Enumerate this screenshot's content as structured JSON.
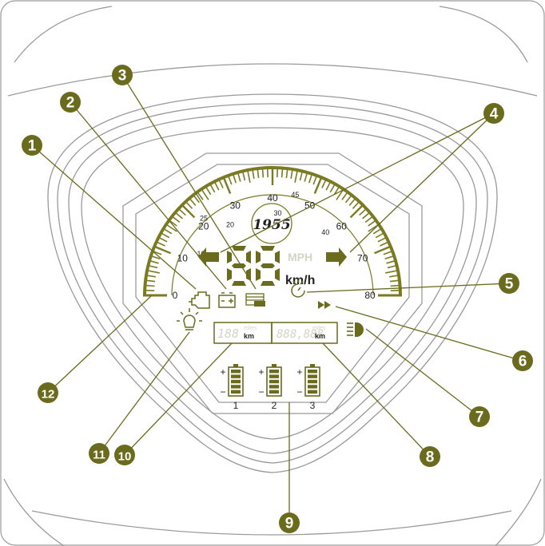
{
  "colors": {
    "accent": "#6b6b1e",
    "scale": "#7a7a22",
    "line": "#9a9a9a",
    "text": "#222222",
    "ghost": "#d4d4c4"
  },
  "logo": {
    "text": "1955"
  },
  "speedometer": {
    "outer_labels": [
      "0",
      "10",
      "20",
      "30",
      "40",
      "50",
      "60",
      "70",
      "80"
    ],
    "inner_labels": [
      "10",
      "20",
      "30",
      "40"
    ],
    "inner_partial": [
      "25",
      "45"
    ],
    "digits": "88",
    "unit_mph": "MPH",
    "unit_kmh": "km/h"
  },
  "display": {
    "trip": "188",
    "odometer": "888,888",
    "unit_miles": "miles",
    "unit_km": "km"
  },
  "batteries": [
    {
      "label": "1",
      "plus": "+",
      "minus": "−"
    },
    {
      "label": "2",
      "plus": "+",
      "minus": "−"
    },
    {
      "label": "3",
      "plus": "+",
      "minus": "−"
    }
  ],
  "callouts": [
    {
      "number": "1"
    },
    {
      "number": "2"
    },
    {
      "number": "3"
    },
    {
      "number": "4"
    },
    {
      "number": "5"
    },
    {
      "number": "6"
    },
    {
      "number": "7"
    },
    {
      "number": "8"
    },
    {
      "number": "9"
    },
    {
      "number": "10"
    },
    {
      "number": "11"
    },
    {
      "number": "12"
    }
  ],
  "icons": [
    "engine-icon",
    "battery-warning-icon",
    "fuel-icon",
    "turn-left-icon",
    "turn-right-icon",
    "service-icon",
    "fast-mode-icon",
    "headlight-icon",
    "odometer-display",
    "battery-level-icon",
    "trip-display",
    "light-icon"
  ]
}
